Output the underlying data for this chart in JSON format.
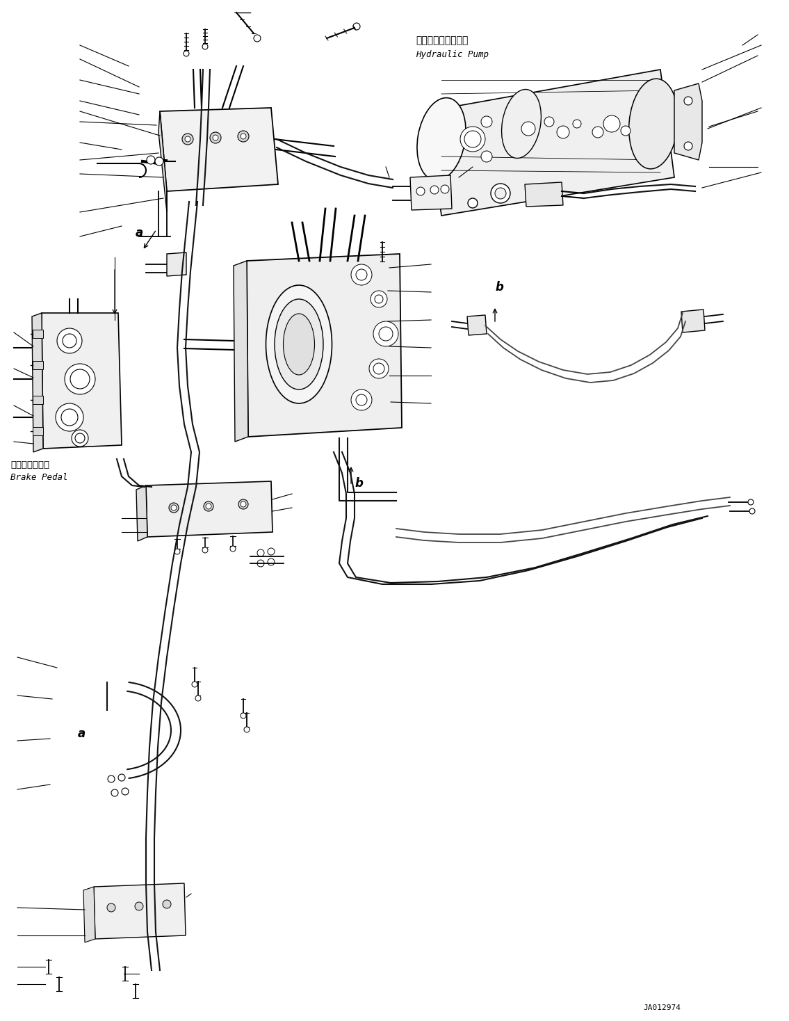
{
  "background_color": "#ffffff",
  "figure_width": 11.35,
  "figure_height": 14.68,
  "dpi": 100,
  "label_a1": "a",
  "label_a2": "a",
  "label_b1": "b",
  "label_b2": "b",
  "label_brake_jp": "ブレーキペダル",
  "label_brake_en": "Brake Pedal",
  "label_pump_jp": "作業機用油圧ポンプ",
  "label_pump_en": "Hydraulic Pump",
  "label_id": "JA012974",
  "line_color": "#000000",
  "text_color": "#000000"
}
